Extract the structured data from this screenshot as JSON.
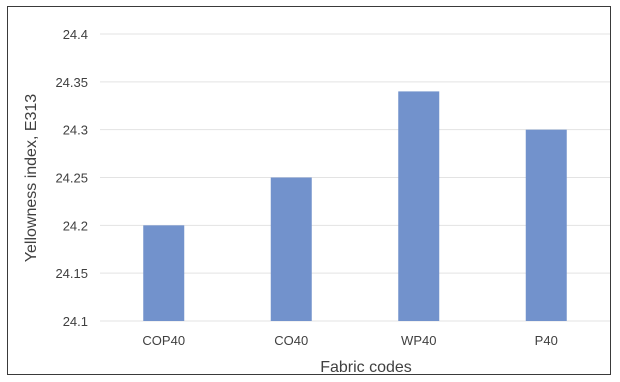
{
  "chart_data": {
    "type": "bar",
    "categories": [
      "COP40",
      "CO40",
      "WP40",
      "P40"
    ],
    "values": [
      24.2,
      24.25,
      24.34,
      24.3
    ],
    "title": "",
    "xlabel": "Fabric codes",
    "ylabel": "Yellowness index, E313",
    "ylim": [
      24.1,
      24.4
    ],
    "yticks": [
      "24.1",
      "24.15",
      "24.2",
      "24.25",
      "24.3",
      "24.35",
      "24.4"
    ],
    "grid": true,
    "legend": "none",
    "bar_color": "#7292CC",
    "grid_color": "#E3E3E3"
  }
}
